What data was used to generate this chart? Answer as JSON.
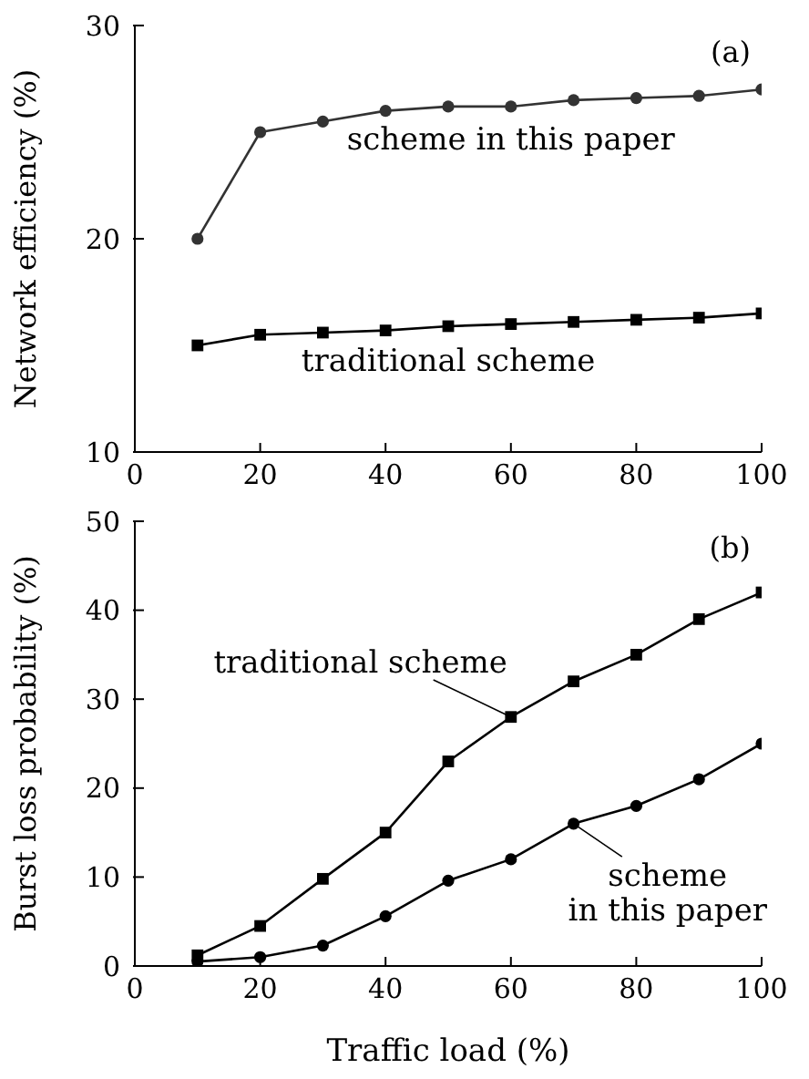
{
  "chart_data": [
    {
      "type": "line",
      "ylabel": "Network efficiency (%)",
      "x": [
        10,
        20,
        30,
        40,
        50,
        60,
        70,
        80,
        90,
        100
      ],
      "xlim": [
        0,
        100
      ],
      "xticks": [
        0,
        20,
        40,
        60,
        80,
        100
      ],
      "ylim": [
        10,
        30
      ],
      "yticks": [
        10,
        20,
        30
      ],
      "annotations": [
        "(a)"
      ],
      "series": [
        {
          "name": "scheme in this paper",
          "color": "#333333",
          "marker": "circle",
          "values": [
            20,
            25,
            25.5,
            26,
            26.2,
            26.2,
            26.5,
            26.6,
            26.7,
            27
          ]
        },
        {
          "name": "traditional scheme",
          "color": "#000000",
          "marker": "square",
          "values": [
            15,
            15.5,
            15.6,
            15.7,
            15.9,
            16,
            16.1,
            16.2,
            16.3,
            16.5
          ]
        }
      ]
    },
    {
      "type": "line",
      "xlabel": "Traffic load (%)",
      "ylabel": "Burst loss probability (%)",
      "x": [
        10,
        20,
        30,
        40,
        50,
        60,
        70,
        80,
        90,
        100
      ],
      "xlim": [
        0,
        100
      ],
      "xticks": [
        0,
        20,
        40,
        60,
        80,
        100
      ],
      "ylim": [
        0,
        50
      ],
      "yticks": [
        0,
        10,
        20,
        30,
        40,
        50
      ],
      "annotations": [
        "(b)"
      ],
      "series": [
        {
          "name": "traditional scheme",
          "color": "#000000",
          "marker": "square",
          "values": [
            1.2,
            4.5,
            9.8,
            15,
            23,
            28,
            32,
            35,
            39,
            42
          ]
        },
        {
          "name": "scheme in this paper",
          "color": "#000000",
          "marker": "circle",
          "values": [
            0.5,
            1,
            2.3,
            5.6,
            9.6,
            12,
            16,
            18,
            21,
            25
          ]
        }
      ]
    }
  ]
}
